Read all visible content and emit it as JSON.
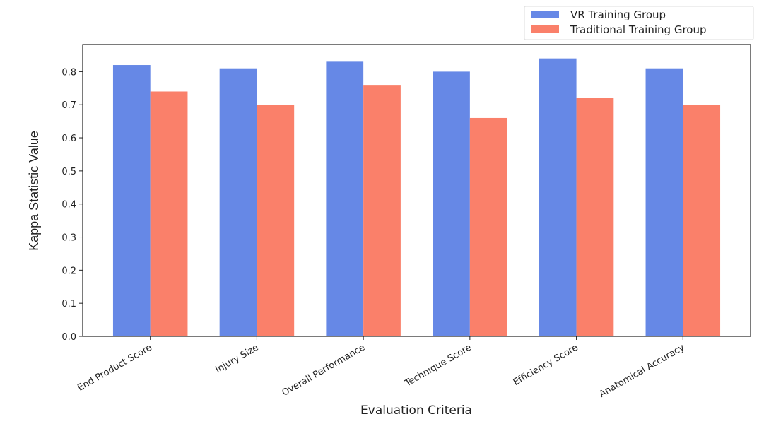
{
  "chart_data": {
    "type": "bar",
    "title": "",
    "xlabel": "Evaluation Criteria",
    "ylabel": "Kappa Statistic Value",
    "categories": [
      "End Product Score",
      "Injury Size",
      "Overall Performance",
      "Technique Score",
      "Efficiency Score",
      "Anatomical Accuracy"
    ],
    "series": [
      {
        "name": "VR Training Group",
        "color": "#6688e6",
        "values": [
          0.82,
          0.81,
          0.83,
          0.8,
          0.84,
          0.81
        ]
      },
      {
        "name": "Traditional Training Group",
        "color": "#fa806a",
        "values": [
          0.74,
          0.7,
          0.76,
          0.66,
          0.72,
          0.7
        ]
      }
    ],
    "ylim": [
      0,
      0.882
    ],
    "yticks": [
      "0.0",
      "0.1",
      "0.2",
      "0.3",
      "0.4",
      "0.5",
      "0.6",
      "0.7",
      "0.8"
    ],
    "grid": false,
    "legend_position": "upper-right-outside"
  }
}
